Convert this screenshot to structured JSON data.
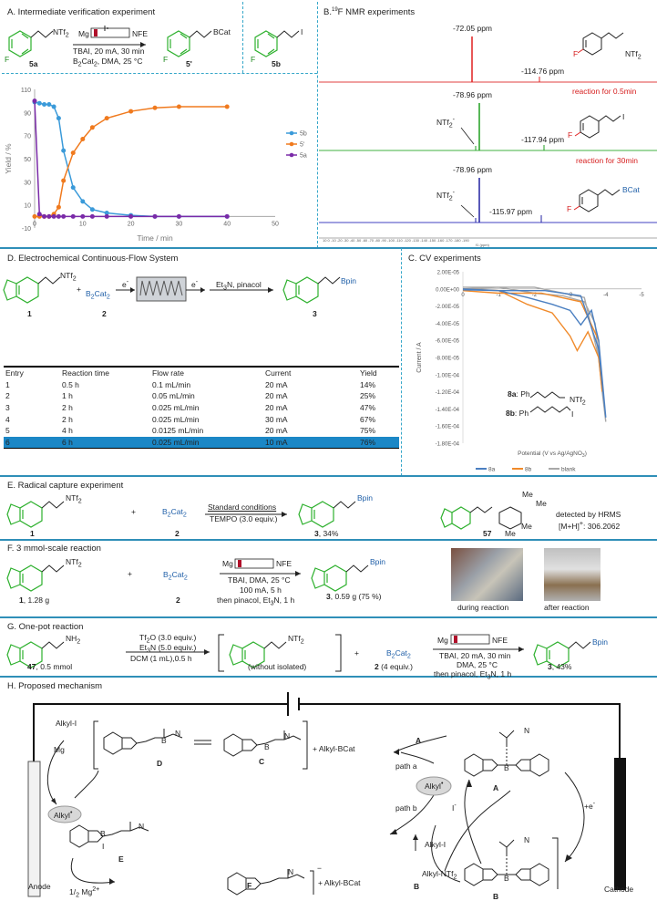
{
  "sectionA": {
    "title": "A. Intermediate verification experiment",
    "reagent_label": "NTf",
    "reagent_sub": "2",
    "cond_top": "Mg",
    "cond_top_right": "NFE",
    "cond_line1": "TBAI, 20 mA, 30 min",
    "cond_line2_a": "B",
    "cond_line2_b": "2",
    "cond_line2_c": "Cat",
    "cond_line2_d": "2",
    "cond_line2_e": ", DMA, 25 °C",
    "sm_label": "5a",
    "prod_label": "5'",
    "prod_group": "BCat",
    "side_label": "5b",
    "side_group": "I",
    "f_atom": "F"
  },
  "chart_data": {
    "type": "line",
    "xlabel": "Time / min",
    "ylabel": "Yield / %",
    "xlim": [
      0,
      50
    ],
    "ylim": [
      -10,
      110
    ],
    "xticks": [
      "0",
      "10",
      "20",
      "30",
      "40",
      "50"
    ],
    "yticks": [
      "-10",
      "10",
      "30",
      "50",
      "70",
      "90",
      "110"
    ],
    "series": [
      {
        "name": "5b",
        "color": "#3a9ad9",
        "x": [
          0,
          1,
          2,
          3,
          4,
          5,
          6,
          8,
          10,
          12,
          15,
          20,
          25,
          30,
          40
        ],
        "y": [
          99,
          98,
          97,
          97,
          95,
          85,
          57,
          25,
          13,
          6,
          3,
          1,
          0,
          0,
          0
        ]
      },
      {
        "name": "5'",
        "color": "#f07a1e",
        "x": [
          0,
          1,
          2,
          3,
          4,
          5,
          6,
          8,
          10,
          12,
          15,
          20,
          25,
          30,
          40
        ],
        "y": [
          0,
          0,
          0,
          0,
          2,
          8,
          31,
          55,
          67,
          77,
          85,
          91,
          94,
          95,
          95
        ]
      },
      {
        "name": "5a",
        "color": "#7a2aa8",
        "x": [
          0,
          1,
          2,
          3,
          4,
          5,
          6,
          8,
          10,
          12,
          15,
          20,
          25,
          30,
          40
        ],
        "y": [
          100,
          2,
          0,
          0,
          0,
          0,
          0,
          0,
          0,
          0,
          0,
          0,
          0,
          0,
          0
        ]
      }
    ]
  },
  "sectionB": {
    "title_a": "B.",
    "title_sup": "19",
    "title_b": "F NMR experiments",
    "peak1": "-72.05 ppm",
    "peak2": "-114.76 ppm",
    "label1": "reaction for 0.5min",
    "peak3": "-78.96 ppm",
    "ntf1": "NTf",
    "ntf1_sub": "2",
    "ntf1_sup": "-",
    "peak4": "-117.94 ppm",
    "label2": "reaction for 30min",
    "peak5": "-78.96 ppm",
    "ntf2": "NTf",
    "ntf2_sub": "2",
    "ntf2_sup": "-",
    "peak6": "-115.97 ppm",
    "mol1_group": "NTf",
    "mol1_sub": "2",
    "mol2_group": "I",
    "mol3_group": "BCat",
    "f_atom": "F",
    "axis_ticks": "10  0  -10  -20  -30  -40  -50  -60  -70  -80  -90  -100  -110  -120  -130  -140  -150  -160  -170  -180  -190",
    "axis_unit": "f1 (ppm)"
  },
  "sectionD": {
    "title": "D. Electrochemical Continuous-Flow System",
    "sm_group": "NTf",
    "sm_sub": "2",
    "plus": "+",
    "reagent": "B",
    "reagent_sub": "2",
    "reagent_b": "Cat",
    "reagent_sub2": "2",
    "e1": "e",
    "e1_sup": "-",
    "e2": "e",
    "e2_sup": "-",
    "cond": "Et",
    "cond_sub": "3",
    "cond_b": "N, pinacol",
    "prod_group": "Bpin",
    "label1": "1",
    "label2": "2",
    "label3": "3",
    "table_headers": [
      "Entry",
      "Reaction time",
      "Flow rate",
      "Current",
      "Yield"
    ],
    "table_rows": [
      [
        "1",
        "0.5 h",
        "0.1 mL/min",
        "20 mA",
        "14%"
      ],
      [
        "2",
        "1 h",
        "0.05 mL/min",
        "20 mA",
        "25%"
      ],
      [
        "3",
        "2 h",
        "0.025 mL/min",
        "20 mA",
        "47%"
      ],
      [
        "4",
        "2 h",
        "0.025 mL/min",
        "30 mA",
        "67%"
      ],
      [
        "5",
        "4 h",
        "0.0125 mL/min",
        "20 mA",
        "75%"
      ],
      [
        "6",
        "6 h",
        "0.025 mL/min",
        "10 mA",
        "76%"
      ]
    ]
  },
  "sectionC": {
    "title": "C. CV experiments",
    "yticks": [
      "2.00E-05",
      "0.00E+00",
      "-2.00E-05",
      "-4.00E-05",
      "-6.00E-05",
      "-8.00E-05",
      "-1.00E-04",
      "-1.20E-04",
      "-1.40E-04",
      "-1.60E-04",
      "-1.80E-04"
    ],
    "xticks": [
      "0",
      "-1",
      "-2",
      "-3",
      "-4",
      "-5"
    ],
    "ylabel": "Current / A",
    "xlabel": "Potential (V vs Ag/AgNO",
    "xlabel_sub": "3",
    "xlabel_end": ")",
    "legend": [
      "8a",
      "8b",
      "blank"
    ],
    "legend_colors": [
      "#4a7fc1",
      "#f08a2a",
      "#a8a8a8"
    ],
    "mol8a": "8a",
    "mol8a_ph": ": Ph",
    "mol8a_group": "NTf",
    "mol8a_sub": "2",
    "mol8b": "8b",
    "mol8b_ph": ": Ph",
    "mol8b_group": "I"
  },
  "sectionE": {
    "title": "E. Radical capture experiment",
    "sm_group": "NTf",
    "sm_sub": "2",
    "plus": "+",
    "reagent": "B",
    "reagent_sub": "2",
    "reagent_b": "Cat",
    "reagent_sub2": "2",
    "cond1": "Standard conditions",
    "cond2": "TEMPO (3.0 equiv.)",
    "prod_group": "Bpin",
    "prod_label": "3",
    "prod_yield": ", 34%",
    "label1": "1",
    "label2": "2",
    "trap_label": "57",
    "detect1": "detected by HRMS",
    "detect2": "[M+H]",
    "detect2_sup": "+",
    "detect2_end": ": 306.2062",
    "me": "Me"
  },
  "sectionF": {
    "title": "F. 3 mmol-scale reaction",
    "sm_group": "NTf",
    "sm_sub": "2",
    "sm_label": "1",
    "sm_mass": ", 1.28 g",
    "plus": "+",
    "reagent": "B",
    "reagent_sub": "2",
    "reagent_b": "Cat",
    "reagent_sub2": "2",
    "reagent_label": "2",
    "cond_top": "Mg",
    "cond_top_right": "NFE",
    "cond1": "TBAI, DMA, 25 °C",
    "cond2": "100 mA, 5 h",
    "cond3": "then pinacol, Et",
    "cond3_sub": "3",
    "cond3_end": "N, 1 h",
    "prod_group": "Bpin",
    "prod_label": "3",
    "prod_mass": ", 0.59 g (75 %)",
    "photo1": "during reaction",
    "photo2": "after reaction"
  },
  "sectionG": {
    "title": "G. One-pot reaction",
    "sm_group": "NH",
    "sm_sub": "2",
    "sm_label": "47",
    "sm_amt": ", 0.5 mmol",
    "c1_a": "Tf",
    "c1_sub": "2",
    "c1_b": "O (3.0 equiv.)",
    "c2_a": "Et",
    "c2_sub": "3",
    "c2_b": "N (5.0 equiv.)",
    "c3": "DCM (1 mL),0.5 h",
    "int_group": "NTf",
    "int_sub": "2",
    "int_note": "(without isolated)",
    "plus": "+",
    "reagent": "B",
    "reagent_sub": "2",
    "reagent_b": "Cat",
    "reagent_sub2": "2",
    "reagent_label": "2",
    "reagent_amt": " (4 equiv.)",
    "cond_top": "Mg",
    "cond_top_right": "NFE",
    "cond1": "TBAI, 20 mA, 30 min",
    "cond2": "DMA, 25 °C",
    "cond3": "then pinacol, Et",
    "cond3_sub": "3",
    "cond3_end": "N, 1 h",
    "prod_group": "Bpin",
    "prod_label": "3",
    "prod_yield": ", 43%"
  },
  "sectionH": {
    "title": "H. Proposed mechanism",
    "mg": "Mg",
    "ni": "Ni",
    "anode": "Anode",
    "cathode": "Cathode",
    "alkyl_i_left": "Alkyl-I",
    "alkyl_rad_left": "Alkyl",
    "alkyl_rad_center": "Alkyl",
    "rad_dot": "•",
    "mg_half": "1/",
    "mg_half_sub": "2",
    "mg_ion": " Mg",
    "mg_ion_sup": "2+",
    "label_D": "D",
    "label_C": "C",
    "label_E": "E",
    "label_F": "F",
    "label_A": "A",
    "label_B": "B",
    "label_A_arrow": "A",
    "label_B_arrow": "B",
    "plus_alkyl_bcat1": "+ Alkyl-BCat",
    "plus_alkyl_bcat2": "+ Alkyl-BCat",
    "path_a": "path a",
    "path_b": "path b",
    "iodide": "I",
    "iodide_sup": "-",
    "alkyl_i_center": "Alkyl-I",
    "alkyl_ntf": "Alkyl-NTf",
    "alkyl_ntf_sub": "2",
    "plus_e": "+e",
    "plus_e_sup": "-",
    "b": "B",
    "o": "O",
    "i": "I",
    "n": "N",
    "minus": "−"
  }
}
